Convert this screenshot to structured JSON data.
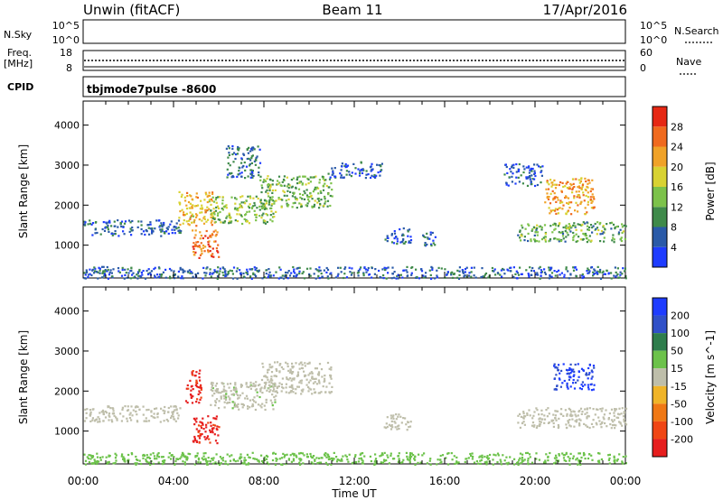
{
  "header": {
    "station": "Unwin (fitACF)",
    "beam": "Beam 11",
    "date": "17/Apr/2016"
  },
  "top_panels": {
    "nsky_label": "N.Sky",
    "nsky_ticks": [
      "10^5",
      "10^0"
    ],
    "nsearch_label": "N.Search",
    "nsearch_ticks": [
      "10^5",
      "10^0"
    ],
    "freq_label": "Freq.",
    "freq_unit": "[MHz]",
    "freq_ticks": [
      "18",
      "8"
    ],
    "nave_label": "Nave",
    "nave_ticks": [
      "60",
      "0"
    ],
    "cpid_label": "CPID",
    "cpid_value": "tbjmode7pulse -8600"
  },
  "colors": {
    "power_scale": [
      "#1e3cff",
      "#2a5aa8",
      "#3f8a4a",
      "#7cc24a",
      "#d8d232",
      "#f0a228",
      "#f06a1e",
      "#e62814"
    ],
    "velocity_scale": [
      "#1e3cff",
      "#3050c8",
      "#2e7d4c",
      "#6cc24a",
      "#bebeaa",
      "#f0b428",
      "#f07814",
      "#f04614",
      "#e61e1e"
    ],
    "ground_scatter": "#bebeaa"
  },
  "chart_data": [
    {
      "type": "heatmap",
      "title": "Power",
      "xlabel": "Time UT",
      "ylabel": "Slant Range [km]",
      "x_ticks": [
        "00:00",
        "04:00",
        "08:00",
        "12:00",
        "16:00",
        "20:00",
        "00:00"
      ],
      "x_range_hours": [
        0,
        24
      ],
      "y_ticks": [
        1000,
        2000,
        3000,
        4000
      ],
      "y_range_km": [
        180,
        4600
      ],
      "colorbar_label": "Power [dB]",
      "colorbar_ticks": [
        4,
        8,
        12,
        16,
        20,
        24,
        28
      ],
      "colorbar_range": [
        0,
        32
      ],
      "regions": [
        {
          "t0": 0.0,
          "t1": 4.3,
          "r0": 1250,
          "r1": 1650,
          "level": 6
        },
        {
          "t0": 4.2,
          "t1": 5.8,
          "r0": 1500,
          "r1": 2350,
          "level": 20
        },
        {
          "t0": 4.8,
          "t1": 6.0,
          "r0": 700,
          "r1": 1400,
          "level": 26
        },
        {
          "t0": 5.6,
          "t1": 8.5,
          "r0": 1550,
          "r1": 2250,
          "level": 14
        },
        {
          "t0": 7.8,
          "t1": 11.0,
          "r0": 1950,
          "r1": 2750,
          "level": 13
        },
        {
          "t0": 6.3,
          "t1": 7.8,
          "r0": 2700,
          "r1": 3500,
          "level": 7
        },
        {
          "t0": 10.8,
          "t1": 13.2,
          "r0": 2700,
          "r1": 3100,
          "level": 5
        },
        {
          "t0": 13.3,
          "t1": 14.5,
          "r0": 1050,
          "r1": 1450,
          "level": 6
        },
        {
          "t0": 15.0,
          "t1": 15.6,
          "r0": 1000,
          "r1": 1350,
          "level": 6
        },
        {
          "t0": 19.2,
          "t1": 24.0,
          "r0": 1100,
          "r1": 1600,
          "level": 12
        },
        {
          "t0": 20.4,
          "t1": 22.6,
          "r0": 1800,
          "r1": 2700,
          "level": 22
        },
        {
          "t0": 18.6,
          "t1": 20.3,
          "r0": 2500,
          "r1": 3050,
          "level": 5
        },
        {
          "t0": 0.0,
          "t1": 24.0,
          "r0": 180,
          "r1": 480,
          "level": 6
        }
      ]
    },
    {
      "type": "heatmap",
      "title": "Velocity",
      "xlabel": "Time UT",
      "ylabel": "Slant Range [km]",
      "x_ticks": [
        "00:00",
        "04:00",
        "08:00",
        "12:00",
        "16:00",
        "20:00",
        "00:00"
      ],
      "x_range_hours": [
        0,
        24
      ],
      "y_ticks": [
        1000,
        2000,
        3000,
        4000
      ],
      "y_range_km": [
        180,
        4600
      ],
      "colorbar_label": "Velocity [m s^-1]",
      "colorbar_ticks": [
        200,
        100,
        50,
        15,
        -15,
        -50,
        -100,
        -200
      ],
      "regions": [
        {
          "t0": 0.0,
          "t1": 4.3,
          "r0": 1250,
          "r1": 1650,
          "velocity": 0
        },
        {
          "t0": 4.5,
          "t1": 5.2,
          "r0": 1700,
          "r1": 2550,
          "velocity": -220
        },
        {
          "t0": 4.8,
          "t1": 6.0,
          "r0": 700,
          "r1": 1400,
          "velocity": -220
        },
        {
          "t0": 5.6,
          "t1": 8.5,
          "r0": 1550,
          "r1": 2250,
          "velocity": 5
        },
        {
          "t0": 7.8,
          "t1": 11.0,
          "r0": 1950,
          "r1": 2750,
          "velocity": 0
        },
        {
          "t0": 13.3,
          "t1": 14.5,
          "r0": 1050,
          "r1": 1450,
          "velocity": 0
        },
        {
          "t0": 19.2,
          "t1": 24.0,
          "r0": 1100,
          "r1": 1600,
          "velocity": 0
        },
        {
          "t0": 20.8,
          "t1": 22.6,
          "r0": 2050,
          "r1": 2700,
          "velocity": 210
        },
        {
          "t0": 0.0,
          "t1": 24.0,
          "r0": 180,
          "r1": 480,
          "velocity": 30
        }
      ]
    }
  ]
}
